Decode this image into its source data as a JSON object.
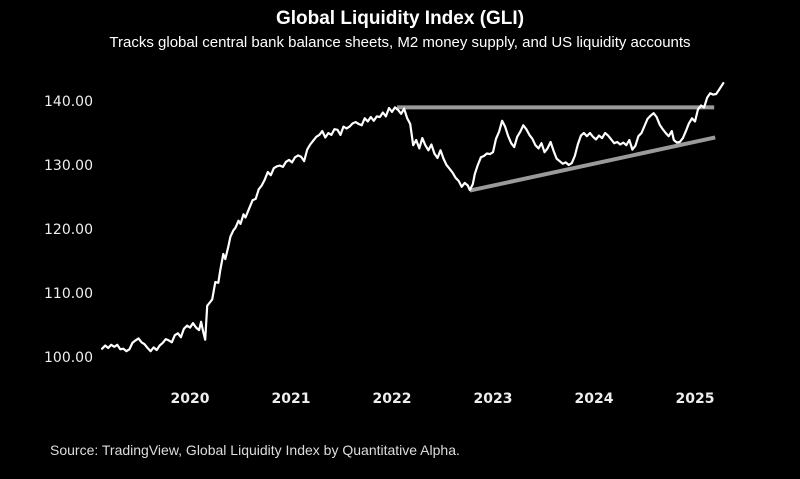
{
  "chart_data": {
    "type": "line",
    "title": "Global Liquidity Index (GLI)",
    "subtitle": "Tracks global central bank balance sheets, M2 money supply, and US liquidity accounts",
    "source": "Source: TradingView, Global Liquidity Index by Quantitative Alpha.",
    "xlabel": "",
    "ylabel": "",
    "xlim": [
      2018.8,
      2026.0
    ],
    "ylim": [
      96,
      146
    ],
    "grid": false,
    "legend": "none",
    "y_ticks": [
      {
        "value": 100,
        "label": "100.00"
      },
      {
        "value": 110,
        "label": "110.00"
      },
      {
        "value": 120,
        "label": "120.00"
      },
      {
        "value": 130,
        "label": "130.00"
      },
      {
        "value": 140,
        "label": "140.00"
      }
    ],
    "x_ticks": [
      {
        "value": 2020,
        "label": "2020"
      },
      {
        "value": 2021,
        "label": "2021"
      },
      {
        "value": 2022,
        "label": "2022"
      },
      {
        "value": 2023,
        "label": "2023"
      },
      {
        "value": 2024,
        "label": "2024"
      },
      {
        "value": 2025,
        "label": "2025"
      }
    ],
    "series": [
      {
        "name": "GLI",
        "color": "#ffffff",
        "points": [
          [
            2019.13,
            101.3
          ],
          [
            2019.16,
            101.8
          ],
          [
            2019.19,
            101.4
          ],
          [
            2019.22,
            101.9
          ],
          [
            2019.25,
            101.6
          ],
          [
            2019.28,
            101.9
          ],
          [
            2019.31,
            101.2
          ],
          [
            2019.34,
            101.3
          ],
          [
            2019.37,
            100.9
          ],
          [
            2019.4,
            101.2
          ],
          [
            2019.43,
            102.2
          ],
          [
            2019.46,
            102.6
          ],
          [
            2019.49,
            102.9
          ],
          [
            2019.52,
            102.3
          ],
          [
            2019.55,
            102.0
          ],
          [
            2019.58,
            101.4
          ],
          [
            2019.61,
            100.9
          ],
          [
            2019.64,
            101.5
          ],
          [
            2019.67,
            101.1
          ],
          [
            2019.7,
            101.8
          ],
          [
            2019.73,
            102.2
          ],
          [
            2019.76,
            102.8
          ],
          [
            2019.79,
            102.6
          ],
          [
            2019.82,
            102.3
          ],
          [
            2019.85,
            103.4
          ],
          [
            2019.88,
            103.7
          ],
          [
            2019.91,
            103.1
          ],
          [
            2019.94,
            104.4
          ],
          [
            2019.97,
            104.9
          ],
          [
            2020.0,
            104.6
          ],
          [
            2020.03,
            105.3
          ],
          [
            2020.06,
            104.6
          ],
          [
            2020.09,
            104.2
          ],
          [
            2020.11,
            105.5
          ],
          [
            2020.13,
            104.0
          ],
          [
            2020.15,
            102.7
          ],
          [
            2020.17,
            108.0
          ],
          [
            2020.2,
            108.6
          ],
          [
            2020.22,
            109.0
          ],
          [
            2020.25,
            111.7
          ],
          [
            2020.28,
            111.6
          ],
          [
            2020.3,
            113.6
          ],
          [
            2020.33,
            116.1
          ],
          [
            2020.35,
            115.3
          ],
          [
            2020.38,
            117.3
          ],
          [
            2020.4,
            118.8
          ],
          [
            2020.43,
            119.8
          ],
          [
            2020.45,
            120.2
          ],
          [
            2020.48,
            121.3
          ],
          [
            2020.5,
            120.8
          ],
          [
            2020.53,
            122.3
          ],
          [
            2020.55,
            121.8
          ],
          [
            2020.58,
            123.0
          ],
          [
            2020.62,
            124.5
          ],
          [
            2020.65,
            124.7
          ],
          [
            2020.68,
            126.2
          ],
          [
            2020.71,
            126.8
          ],
          [
            2020.74,
            127.7
          ],
          [
            2020.77,
            128.9
          ],
          [
            2020.8,
            128.4
          ],
          [
            2020.83,
            129.5
          ],
          [
            2020.86,
            129.8
          ],
          [
            2020.89,
            129.9
          ],
          [
            2020.92,
            129.7
          ],
          [
            2020.95,
            130.5
          ],
          [
            2020.98,
            130.8
          ],
          [
            2021.01,
            130.4
          ],
          [
            2021.04,
            131.2
          ],
          [
            2021.07,
            131.5
          ],
          [
            2021.1,
            131.3
          ],
          [
            2021.13,
            130.6
          ],
          [
            2021.16,
            132.4
          ],
          [
            2021.19,
            133.2
          ],
          [
            2021.22,
            133.8
          ],
          [
            2021.25,
            134.4
          ],
          [
            2021.28,
            134.7
          ],
          [
            2021.31,
            135.3
          ],
          [
            2021.34,
            134.3
          ],
          [
            2021.37,
            135.0
          ],
          [
            2021.4,
            134.7
          ],
          [
            2021.43,
            135.6
          ],
          [
            2021.46,
            135.5
          ],
          [
            2021.49,
            134.7
          ],
          [
            2021.52,
            136.0
          ],
          [
            2021.55,
            135.7
          ],
          [
            2021.58,
            136.0
          ],
          [
            2021.61,
            136.5
          ],
          [
            2021.64,
            136.7
          ],
          [
            2021.67,
            136.4
          ],
          [
            2021.7,
            136.2
          ],
          [
            2021.73,
            137.3
          ],
          [
            2021.76,
            136.8
          ],
          [
            2021.79,
            137.5
          ],
          [
            2021.82,
            136.9
          ],
          [
            2021.85,
            137.6
          ],
          [
            2021.88,
            137.5
          ],
          [
            2021.91,
            138.2
          ],
          [
            2021.94,
            137.6
          ],
          [
            2021.97,
            138.9
          ],
          [
            2022.0,
            138.3
          ],
          [
            2022.03,
            139.0
          ],
          [
            2022.06,
            138.6
          ],
          [
            2022.09,
            138.0
          ],
          [
            2022.12,
            138.8
          ],
          [
            2022.15,
            137.3
          ],
          [
            2022.18,
            136.4
          ],
          [
            2022.21,
            133.1
          ],
          [
            2022.24,
            133.9
          ],
          [
            2022.27,
            132.6
          ],
          [
            2022.3,
            134.2
          ],
          [
            2022.33,
            133.1
          ],
          [
            2022.36,
            132.3
          ],
          [
            2022.39,
            133.2
          ],
          [
            2022.42,
            131.8
          ],
          [
            2022.45,
            131.1
          ],
          [
            2022.48,
            132.3
          ],
          [
            2022.51,
            131.0
          ],
          [
            2022.54,
            130.0
          ],
          [
            2022.57,
            129.4
          ],
          [
            2022.6,
            128.8
          ],
          [
            2022.63,
            128.0
          ],
          [
            2022.66,
            127.5
          ],
          [
            2022.69,
            126.6
          ],
          [
            2022.72,
            127.2
          ],
          [
            2022.75,
            126.8
          ],
          [
            2022.77,
            126.1
          ],
          [
            2022.8,
            127.0
          ],
          [
            2022.82,
            128.6
          ],
          [
            2022.85,
            130.0
          ],
          [
            2022.88,
            131.2
          ],
          [
            2022.91,
            131.4
          ],
          [
            2022.94,
            131.8
          ],
          [
            2022.97,
            131.7
          ],
          [
            2023.0,
            132.0
          ],
          [
            2023.03,
            134.1
          ],
          [
            2023.06,
            135.2
          ],
          [
            2023.09,
            136.9
          ],
          [
            2023.12,
            136.0
          ],
          [
            2023.15,
            134.5
          ],
          [
            2023.18,
            133.4
          ],
          [
            2023.21,
            132.8
          ],
          [
            2023.24,
            134.4
          ],
          [
            2023.27,
            135.2
          ],
          [
            2023.3,
            136.2
          ],
          [
            2023.33,
            135.6
          ],
          [
            2023.36,
            134.7
          ],
          [
            2023.39,
            134.1
          ],
          [
            2023.42,
            133.1
          ],
          [
            2023.45,
            132.6
          ],
          [
            2023.48,
            133.4
          ],
          [
            2023.51,
            132.0
          ],
          [
            2023.54,
            132.6
          ],
          [
            2023.57,
            133.6
          ],
          [
            2023.6,
            132.2
          ],
          [
            2023.63,
            131.0
          ],
          [
            2023.66,
            130.6
          ],
          [
            2023.69,
            130.2
          ],
          [
            2023.72,
            130.4
          ],
          [
            2023.75,
            130.0
          ],
          [
            2023.78,
            130.3
          ],
          [
            2023.81,
            131.4
          ],
          [
            2023.84,
            133.2
          ],
          [
            2023.87,
            134.6
          ],
          [
            2023.9,
            135.0
          ],
          [
            2023.93,
            134.5
          ],
          [
            2023.96,
            135.0
          ],
          [
            2023.99,
            134.4
          ],
          [
            2024.02,
            134.0
          ],
          [
            2024.05,
            134.6
          ],
          [
            2024.08,
            134.2
          ],
          [
            2024.11,
            135.0
          ],
          [
            2024.14,
            134.6
          ],
          [
            2024.17,
            134.0
          ],
          [
            2024.2,
            133.4
          ],
          [
            2024.23,
            133.6
          ],
          [
            2024.26,
            133.2
          ],
          [
            2024.29,
            133.5
          ],
          [
            2024.32,
            133.1
          ],
          [
            2024.35,
            133.9
          ],
          [
            2024.38,
            132.4
          ],
          [
            2024.41,
            133.0
          ],
          [
            2024.44,
            134.5
          ],
          [
            2024.47,
            135.0
          ],
          [
            2024.5,
            136.1
          ],
          [
            2024.53,
            137.2
          ],
          [
            2024.56,
            137.7
          ],
          [
            2024.59,
            138.1
          ],
          [
            2024.62,
            137.5
          ],
          [
            2024.65,
            136.3
          ],
          [
            2024.68,
            135.6
          ],
          [
            2024.71,
            135.0
          ],
          [
            2024.74,
            134.5
          ],
          [
            2024.77,
            135.3
          ],
          [
            2024.79,
            133.9
          ],
          [
            2024.82,
            133.5
          ],
          [
            2024.85,
            133.6
          ],
          [
            2024.88,
            134.2
          ],
          [
            2024.91,
            135.3
          ],
          [
            2024.94,
            136.5
          ],
          [
            2024.97,
            137.3
          ],
          [
            2025.0,
            136.8
          ],
          [
            2025.03,
            138.7
          ],
          [
            2025.06,
            139.3
          ],
          [
            2025.09,
            139.0
          ],
          [
            2025.12,
            140.5
          ],
          [
            2025.15,
            141.2
          ],
          [
            2025.18,
            141.0
          ],
          [
            2025.21,
            141.1
          ],
          [
            2025.24,
            141.8
          ],
          [
            2025.28,
            142.8
          ]
        ]
      }
    ],
    "annotations": [
      {
        "type": "horizontal_resistance_line",
        "color": "#9a9a9a",
        "from": [
          2022.05,
          139.0
        ],
        "to": [
          2025.19,
          139.0
        ]
      },
      {
        "type": "rising_support_line",
        "color": "#9a9a9a",
        "from": [
          2022.77,
          126.0
        ],
        "to": [
          2025.2,
          134.3
        ]
      }
    ]
  }
}
